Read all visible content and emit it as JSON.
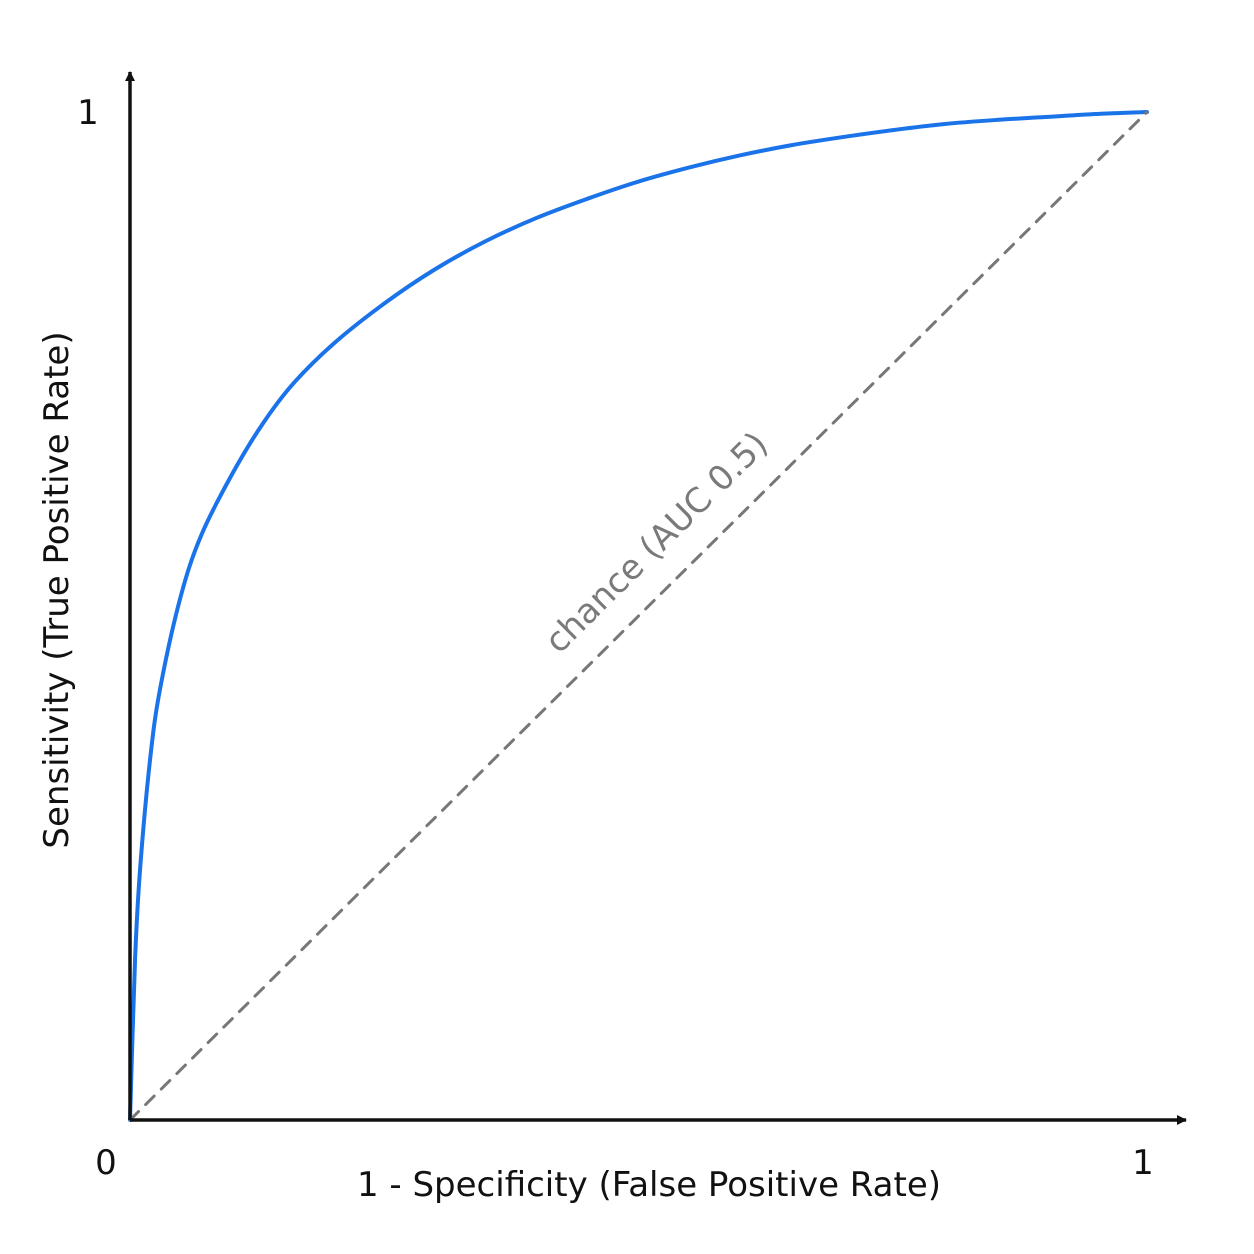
{
  "chart_data": {
    "type": "line",
    "title": "",
    "xlabel": "1 - Specificity (False Positive Rate)",
    "ylabel": "Sensitivity (True Positive Rate)",
    "xlim": [
      0,
      1
    ],
    "ylim": [
      0,
      1
    ],
    "x_tick_labels": [
      "0",
      "1"
    ],
    "y_tick_labels": [
      "1"
    ],
    "grid": false,
    "legend": "none",
    "series": [
      {
        "style": "solid",
        "color": "#1a73e8",
        "x": [
          0,
          0.005,
          0.01,
          0.02,
          0.03,
          0.05,
          0.07,
          0.1,
          0.13,
          0.16,
          0.2,
          0.25,
          0.3,
          0.35,
          0.4,
          0.45,
          0.5,
          0.55,
          0.6,
          0.65,
          0.7,
          0.75,
          0.8,
          0.85,
          0.9,
          0.95,
          1.0
        ],
        "y": [
          0,
          0.16,
          0.25,
          0.36,
          0.43,
          0.52,
          0.58,
          0.64,
          0.69,
          0.73,
          0.77,
          0.81,
          0.844,
          0.872,
          0.895,
          0.914,
          0.931,
          0.945,
          0.957,
          0.967,
          0.975,
          0.982,
          0.988,
          0.992,
          0.995,
          0.998,
          1.0
        ]
      },
      {
        "style": "dashed",
        "color": "#777777",
        "x": [
          0,
          1
        ],
        "y": [
          0,
          1
        ]
      }
    ],
    "annotations": [
      {
        "text": "chance (AUC 0.5)",
        "x": 0.55,
        "y": 0.55
      }
    ]
  }
}
